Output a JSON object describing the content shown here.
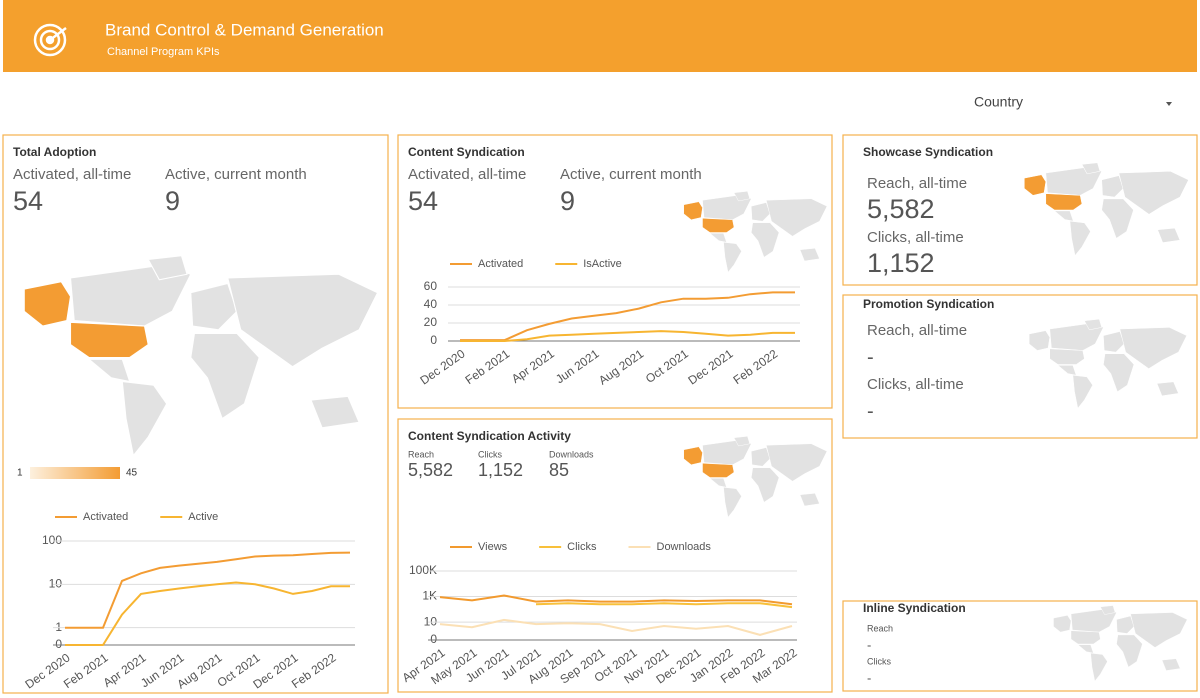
{
  "header": {
    "title": "Brand Control & Demand Generation",
    "subtitle": "Channel Program KPIs"
  },
  "filter": {
    "label": "Country"
  },
  "panels": {
    "total_adoption": {
      "title": "Total Adoption",
      "kpis": [
        {
          "label": "Activated, all-time",
          "value": "54"
        },
        {
          "label": "Active, current month",
          "value": "9"
        }
      ],
      "map_legend": {
        "min": 1,
        "max": 45
      }
    },
    "content_syndication": {
      "title": "Content Syndication",
      "kpis": [
        {
          "label": "Activated, all-time",
          "value": "54"
        },
        {
          "label": "Active, current month",
          "value": "9"
        }
      ]
    },
    "content_syndication_activity": {
      "title": "Content Syndication Activity",
      "kpis": [
        {
          "label": "Reach",
          "value": "5,582"
        },
        {
          "label": "Clicks",
          "value": "1,152"
        },
        {
          "label": "Downloads",
          "value": "85"
        }
      ]
    },
    "showcase_syndication": {
      "title": "Showcase Syndication",
      "kpis": [
        {
          "label": "Reach, all-time",
          "value": "5,582"
        },
        {
          "label": "Clicks, all-time",
          "value": "1,152"
        }
      ]
    },
    "promotion_syndication": {
      "title": "Promotion Syndication",
      "kpis": [
        {
          "label": "Reach, all-time",
          "value": "-"
        },
        {
          "label": "Clicks, all-time",
          "value": "-"
        }
      ]
    },
    "inline_syndication": {
      "title": "Inline Syndication",
      "kpis": [
        {
          "label": "Reach",
          "value": "-"
        },
        {
          "label": "Clicks",
          "value": "-"
        }
      ]
    }
  },
  "chart_data": [
    {
      "type": "line",
      "yscale": "symlog",
      "grid": true,
      "categories": [
        "Dec 2020",
        null,
        "Feb 2021",
        null,
        "Apr 2021",
        null,
        "Jun 2021",
        null,
        "Aug 2021",
        null,
        "Oct 2021",
        null,
        "Dec 2021",
        null,
        "Feb 2022",
        null
      ],
      "series": [
        {
          "name": "Activated",
          "color": "#f39c33",
          "values": [
            1,
            1,
            1,
            12,
            18,
            24,
            27,
            30,
            33,
            38,
            44,
            46,
            47,
            50,
            53,
            54
          ]
        },
        {
          "name": "Active",
          "color": "#f7b531",
          "values": [
            0,
            0,
            0,
            2,
            6,
            7,
            8,
            9,
            10,
            11,
            10,
            8,
            6,
            7,
            9,
            9
          ]
        }
      ],
      "ylim": [
        0,
        100
      ],
      "yticks": [
        0,
        1,
        10,
        100
      ]
    },
    {
      "type": "line",
      "yscale": "linear",
      "grid": true,
      "categories": [
        "Dec 2020",
        null,
        "Feb 2021",
        null,
        "Apr 2021",
        null,
        "Jun 2021",
        null,
        "Aug 2021",
        null,
        "Oct 2021",
        null,
        "Dec 2021",
        null,
        "Feb 2022",
        null
      ],
      "series": [
        {
          "name": "Activated",
          "color": "#f39c33",
          "values": [
            1,
            1,
            1,
            12,
            19,
            25,
            28,
            31,
            36,
            43,
            47,
            47,
            48,
            52,
            54,
            54
          ]
        },
        {
          "name": "IsActive",
          "color": "#f7b531",
          "values": [
            0,
            0,
            0,
            2,
            6,
            7,
            8,
            9,
            10,
            11,
            10,
            8,
            6,
            7,
            9,
            9
          ]
        }
      ],
      "ylim": [
        0,
        60
      ],
      "yticks": [
        0,
        20,
        40,
        60
      ]
    },
    {
      "type": "line",
      "yscale": "symlog",
      "grid": true,
      "categories": [
        "Apr 2021",
        "May 2021",
        "Jun 2021",
        "Jul 2021",
        "Aug 2021",
        "Sep 2021",
        "Oct 2021",
        "Nov 2021",
        "Dec 2021",
        "Jan 2022",
        "Feb 2022",
        "Mar 2022"
      ],
      "series": [
        {
          "name": "Views",
          "color": "#f29a2e",
          "values": [
            900,
            500,
            1200,
            400,
            500,
            400,
            400,
            500,
            450,
            500,
            500,
            250
          ]
        },
        {
          "name": "Clicks",
          "color": "#f8c03a",
          "values": [
            null,
            null,
            null,
            250,
            300,
            250,
            250,
            300,
            250,
            300,
            300,
            150
          ]
        },
        {
          "name": "Downloads",
          "color": "#fbe0b5",
          "values": [
            7,
            4,
            15,
            7,
            8,
            7,
            2,
            5,
            3,
            5,
            1,
            5
          ]
        }
      ],
      "ylim": [
        0,
        100000
      ],
      "yticks": [
        0,
        10,
        {
          "value": 1000,
          "label": "1K"
        },
        {
          "value": 100000,
          "label": "100K"
        }
      ]
    }
  ]
}
